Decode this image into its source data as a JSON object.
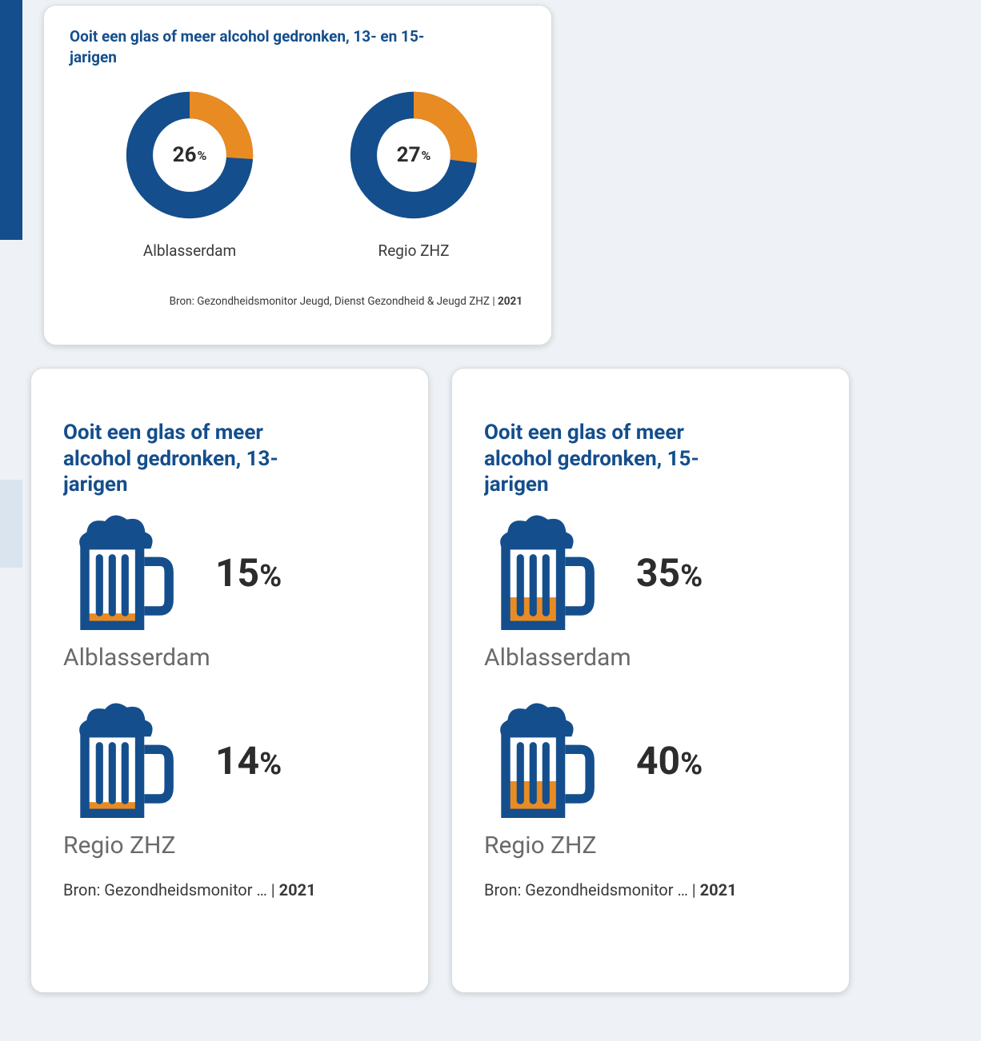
{
  "colors": {
    "primary": "#144e8c",
    "accent": "#e98b23",
    "card_bg": "#ffffff",
    "page_bg": "#eef2f6",
    "text_dark": "#2c2c2c",
    "text_muted": "#6a6a6a"
  },
  "top_card": {
    "title": "Ooit een glas of meer alcohol gedronken, 13- en 15-jarigen",
    "title_fontsize": 19,
    "donuts": [
      {
        "value": 26,
        "value_str": "26",
        "pct_sign": "%",
        "label": "Alblasserdam",
        "ring_bg_color": "#144e8c",
        "ring_fg_color": "#e98b23",
        "inner_radius_ratio": 0.58,
        "start_angle_deg": 0
      },
      {
        "value": 27,
        "value_str": "27",
        "pct_sign": "%",
        "label": "Regio ZHZ",
        "ring_bg_color": "#144e8c",
        "ring_fg_color": "#e98b23",
        "inner_radius_ratio": 0.58,
        "start_angle_deg": 0
      }
    ],
    "source_prefix": "Bron: Gezondheidsmonitor Jeugd, Dienst Gezondheid & Jeugd ZHZ | ",
    "source_year": "2021"
  },
  "left_card": {
    "title": "Ooit een glas of meer alcohol gedronken, 13-jarigen",
    "title_fontsize": 26,
    "items": [
      {
        "value": 15,
        "value_str": "15",
        "pct_sign": "%",
        "label": "Alblasserdam",
        "fill_ratio": 0.15,
        "mug_color": "#144e8c",
        "fill_color": "#e98b23"
      },
      {
        "value": 14,
        "value_str": "14",
        "pct_sign": "%",
        "label": "Regio ZHZ",
        "fill_ratio": 0.14,
        "mug_color": "#144e8c",
        "fill_color": "#e98b23"
      }
    ],
    "source_prefix": "Bron: Gezondheidsmonitor … | ",
    "source_year": "2021"
  },
  "right_card": {
    "title": "Ooit een glas of meer alcohol gedronken, 15-jarigen",
    "title_fontsize": 26,
    "items": [
      {
        "value": 35,
        "value_str": "35",
        "pct_sign": "%",
        "label": "Alblasserdam",
        "fill_ratio": 0.35,
        "mug_color": "#144e8c",
        "fill_color": "#e98b23"
      },
      {
        "value": 40,
        "value_str": "40",
        "pct_sign": "%",
        "label": "Regio ZHZ",
        "fill_ratio": 0.4,
        "mug_color": "#144e8c",
        "fill_color": "#e98b23"
      }
    ],
    "source_prefix": "Bron: Gezondheidsmonitor … | ",
    "source_year": "2021"
  }
}
